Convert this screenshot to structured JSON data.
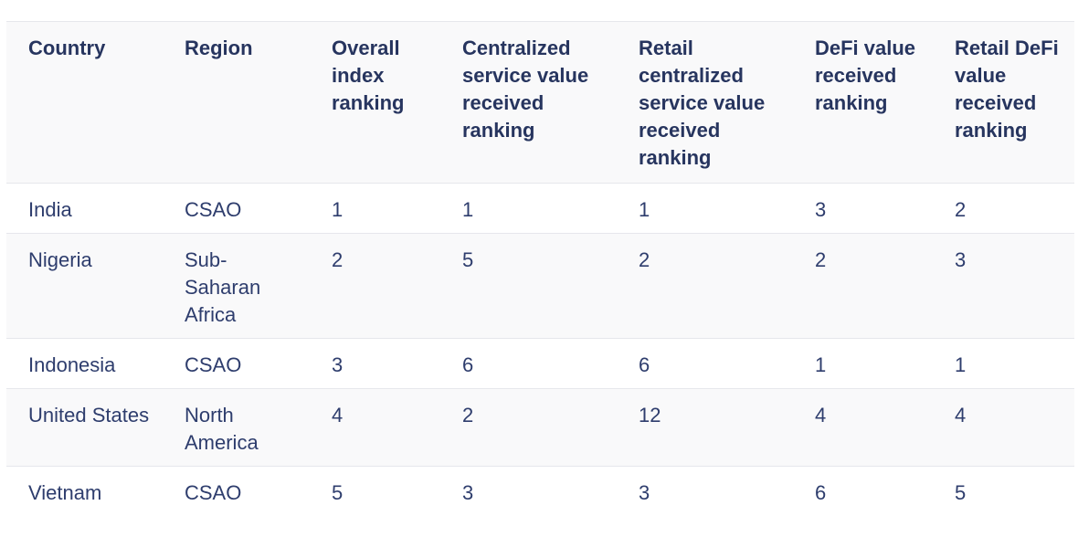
{
  "table": {
    "headers": [
      "Country",
      "Region",
      "Overall index ranking",
      "Centralized service value received ranking",
      "Retail centralized service value received ranking",
      "DeFi value received ranking",
      "Retail DeFi value received ranking"
    ],
    "rows": [
      [
        "India",
        "CSAO",
        "1",
        "1",
        "1",
        "3",
        "2"
      ],
      [
        "Nigeria",
        "Sub-Saharan Africa",
        "2",
        "5",
        "2",
        "2",
        "3"
      ],
      [
        "Indonesia",
        "CSAO",
        "3",
        "6",
        "6",
        "1",
        "1"
      ],
      [
        "United States",
        "North America",
        "4",
        "2",
        "12",
        "4",
        "4"
      ],
      [
        "Vietnam",
        "CSAO",
        "5",
        "3",
        "3",
        "6",
        "5"
      ]
    ]
  }
}
